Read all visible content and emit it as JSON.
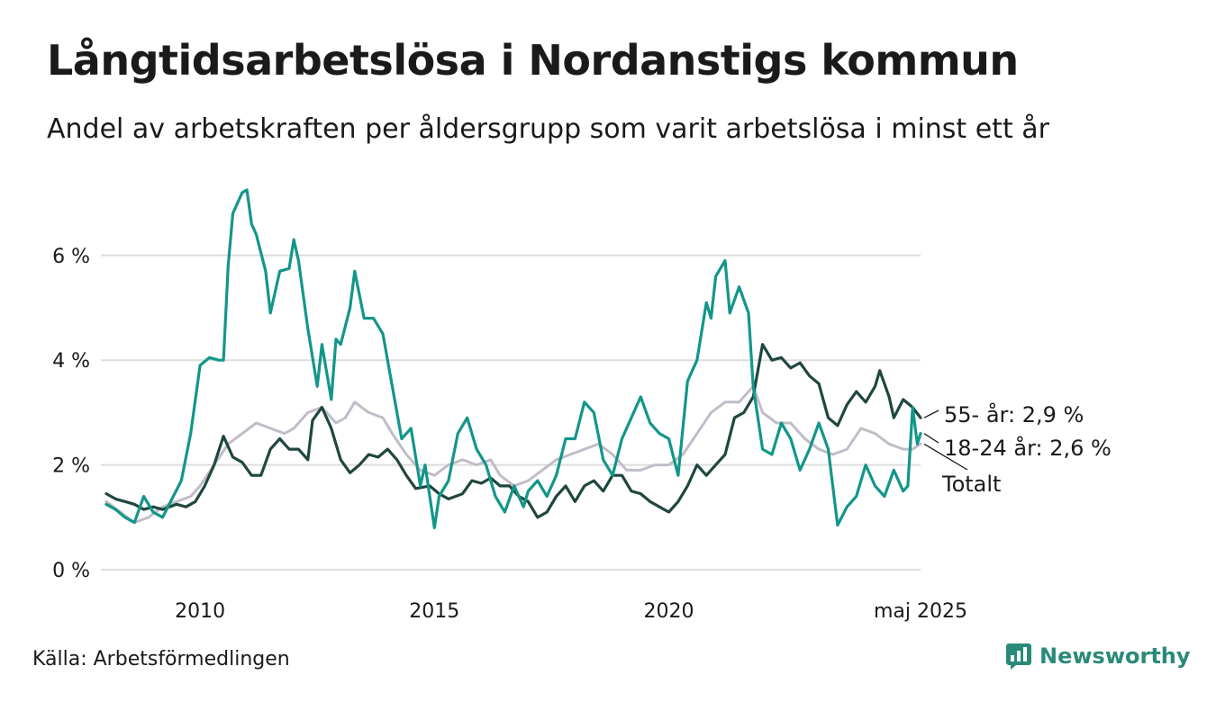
{
  "title": "Långtidsarbetslösa i Nordanstigs kommun",
  "subtitle": "Andel av arbetskraften per åldersgrupp som varit arbetslösa i minst ett år",
  "source": "Källa: Arbetsförmedlingen",
  "brand": "Newsworthy",
  "colors": {
    "young": "#13968a",
    "old": "#20473f",
    "total": "#c2bcc9",
    "grid": "#dddddd",
    "brand": "#2a8a7a"
  },
  "chart_data": {
    "type": "line",
    "yticks": [
      {
        "v": 0,
        "label": "0 %"
      },
      {
        "v": 2,
        "label": "2 %"
      },
      {
        "v": 4,
        "label": "4 %"
      },
      {
        "v": 6,
        "label": "6 %"
      }
    ],
    "xticks": [
      {
        "v": 2010,
        "label": "2010"
      },
      {
        "v": 2015,
        "label": "2015"
      },
      {
        "v": 2020,
        "label": "2020"
      },
      {
        "v": 2025.37,
        "label": "maj 2025"
      }
    ],
    "xlim": [
      2008.0,
      2025.37
    ],
    "ylim": [
      0,
      7.5
    ],
    "grid": true,
    "series": [
      {
        "key": "total",
        "name": "Totalt",
        "end_label": "Totalt",
        "points": [
          [
            2008.0,
            1.3
          ],
          [
            2008.3,
            1.1
          ],
          [
            2008.6,
            0.9
          ],
          [
            2008.9,
            1.0
          ],
          [
            2009.2,
            1.2
          ],
          [
            2009.5,
            1.3
          ],
          [
            2009.8,
            1.4
          ],
          [
            2010.0,
            1.6
          ],
          [
            2010.3,
            2.0
          ],
          [
            2010.6,
            2.4
          ],
          [
            2010.9,
            2.6
          ],
          [
            2011.2,
            2.8
          ],
          [
            2011.5,
            2.7
          ],
          [
            2011.8,
            2.6
          ],
          [
            2012.0,
            2.7
          ],
          [
            2012.3,
            3.0
          ],
          [
            2012.6,
            3.1
          ],
          [
            2012.9,
            2.8
          ],
          [
            2013.1,
            2.9
          ],
          [
            2013.3,
            3.2
          ],
          [
            2013.6,
            3.0
          ],
          [
            2013.9,
            2.9
          ],
          [
            2014.1,
            2.6
          ],
          [
            2014.4,
            2.2
          ],
          [
            2014.7,
            1.9
          ],
          [
            2015.0,
            1.8
          ],
          [
            2015.3,
            2.0
          ],
          [
            2015.6,
            2.1
          ],
          [
            2015.9,
            2.0
          ],
          [
            2016.2,
            2.1
          ],
          [
            2016.4,
            1.8
          ],
          [
            2016.7,
            1.6
          ],
          [
            2017.0,
            1.7
          ],
          [
            2017.3,
            1.9
          ],
          [
            2017.6,
            2.1
          ],
          [
            2017.9,
            2.2
          ],
          [
            2018.2,
            2.3
          ],
          [
            2018.5,
            2.4
          ],
          [
            2018.8,
            2.2
          ],
          [
            2019.1,
            1.9
          ],
          [
            2019.4,
            1.9
          ],
          [
            2019.7,
            2.0
          ],
          [
            2020.0,
            2.0
          ],
          [
            2020.3,
            2.2
          ],
          [
            2020.6,
            2.6
          ],
          [
            2020.9,
            3.0
          ],
          [
            2021.2,
            3.2
          ],
          [
            2021.5,
            3.2
          ],
          [
            2021.8,
            3.5
          ],
          [
            2022.0,
            3.0
          ],
          [
            2022.3,
            2.8
          ],
          [
            2022.6,
            2.8
          ],
          [
            2022.9,
            2.5
          ],
          [
            2023.2,
            2.3
          ],
          [
            2023.5,
            2.2
          ],
          [
            2023.8,
            2.3
          ],
          [
            2024.1,
            2.7
          ],
          [
            2024.4,
            2.6
          ],
          [
            2024.7,
            2.4
          ],
          [
            2025.0,
            2.3
          ],
          [
            2025.2,
            2.3
          ],
          [
            2025.37,
            2.4
          ]
        ]
      },
      {
        "key": "old",
        "name": "55- år",
        "end_label": "55- år: 2,9 %",
        "points": [
          [
            2008.0,
            1.45
          ],
          [
            2008.2,
            1.35
          ],
          [
            2008.4,
            1.3
          ],
          [
            2008.6,
            1.25
          ],
          [
            2008.8,
            1.15
          ],
          [
            2009.0,
            1.2
          ],
          [
            2009.2,
            1.15
          ],
          [
            2009.5,
            1.25
          ],
          [
            2009.7,
            1.2
          ],
          [
            2009.9,
            1.3
          ],
          [
            2010.1,
            1.6
          ],
          [
            2010.3,
            2.0
          ],
          [
            2010.5,
            2.55
          ],
          [
            2010.7,
            2.15
          ],
          [
            2010.9,
            2.05
          ],
          [
            2011.1,
            1.8
          ],
          [
            2011.3,
            1.8
          ],
          [
            2011.5,
            2.3
          ],
          [
            2011.7,
            2.5
          ],
          [
            2011.9,
            2.3
          ],
          [
            2012.1,
            2.3
          ],
          [
            2012.3,
            2.1
          ],
          [
            2012.4,
            2.85
          ],
          [
            2012.6,
            3.1
          ],
          [
            2012.8,
            2.7
          ],
          [
            2013.0,
            2.1
          ],
          [
            2013.2,
            1.85
          ],
          [
            2013.4,
            2.0
          ],
          [
            2013.6,
            2.2
          ],
          [
            2013.8,
            2.15
          ],
          [
            2014.0,
            2.3
          ],
          [
            2014.2,
            2.1
          ],
          [
            2014.4,
            1.8
          ],
          [
            2014.6,
            1.55
          ],
          [
            2014.9,
            1.6
          ],
          [
            2015.1,
            1.45
          ],
          [
            2015.3,
            1.35
          ],
          [
            2015.6,
            1.45
          ],
          [
            2015.8,
            1.7
          ],
          [
            2016.0,
            1.65
          ],
          [
            2016.2,
            1.75
          ],
          [
            2016.4,
            1.6
          ],
          [
            2016.6,
            1.6
          ],
          [
            2016.8,
            1.4
          ],
          [
            2017.0,
            1.3
          ],
          [
            2017.2,
            1.0
          ],
          [
            2017.4,
            1.1
          ],
          [
            2017.6,
            1.4
          ],
          [
            2017.8,
            1.6
          ],
          [
            2018.0,
            1.3
          ],
          [
            2018.2,
            1.6
          ],
          [
            2018.4,
            1.7
          ],
          [
            2018.6,
            1.5
          ],
          [
            2018.8,
            1.8
          ],
          [
            2019.0,
            1.8
          ],
          [
            2019.2,
            1.5
          ],
          [
            2019.4,
            1.45
          ],
          [
            2019.6,
            1.3
          ],
          [
            2019.8,
            1.2
          ],
          [
            2020.0,
            1.1
          ],
          [
            2020.2,
            1.3
          ],
          [
            2020.4,
            1.6
          ],
          [
            2020.6,
            2.0
          ],
          [
            2020.8,
            1.8
          ],
          [
            2021.0,
            2.0
          ],
          [
            2021.2,
            2.2
          ],
          [
            2021.4,
            2.9
          ],
          [
            2021.6,
            3.0
          ],
          [
            2021.8,
            3.3
          ],
          [
            2022.0,
            4.3
          ],
          [
            2022.2,
            4.0
          ],
          [
            2022.4,
            4.05
          ],
          [
            2022.6,
            3.85
          ],
          [
            2022.8,
            3.95
          ],
          [
            2023.0,
            3.7
          ],
          [
            2023.2,
            3.55
          ],
          [
            2023.4,
            2.9
          ],
          [
            2023.6,
            2.75
          ],
          [
            2023.8,
            3.15
          ],
          [
            2024.0,
            3.4
          ],
          [
            2024.2,
            3.2
          ],
          [
            2024.4,
            3.5
          ],
          [
            2024.5,
            3.8
          ],
          [
            2024.7,
            3.3
          ],
          [
            2024.8,
            2.9
          ],
          [
            2025.0,
            3.25
          ],
          [
            2025.2,
            3.1
          ],
          [
            2025.37,
            2.9
          ]
        ]
      },
      {
        "key": "young",
        "name": "18-24 år",
        "end_label": "18-24 år: 2,6 %",
        "points": [
          [
            2008.0,
            1.25
          ],
          [
            2008.2,
            1.15
          ],
          [
            2008.4,
            1.0
          ],
          [
            2008.6,
            0.9
          ],
          [
            2008.8,
            1.4
          ],
          [
            2009.0,
            1.1
          ],
          [
            2009.2,
            1.0
          ],
          [
            2009.4,
            1.35
          ],
          [
            2009.6,
            1.7
          ],
          [
            2009.8,
            2.6
          ],
          [
            2010.0,
            3.9
          ],
          [
            2010.2,
            4.05
          ],
          [
            2010.4,
            4.0
          ],
          [
            2010.5,
            4.0
          ],
          [
            2010.6,
            5.8
          ],
          [
            2010.7,
            6.8
          ],
          [
            2010.9,
            7.2
          ],
          [
            2011.0,
            7.25
          ],
          [
            2011.1,
            6.6
          ],
          [
            2011.2,
            6.4
          ],
          [
            2011.4,
            5.7
          ],
          [
            2011.5,
            4.9
          ],
          [
            2011.7,
            5.7
          ],
          [
            2011.9,
            5.75
          ],
          [
            2012.0,
            6.3
          ],
          [
            2012.1,
            5.9
          ],
          [
            2012.3,
            4.6
          ],
          [
            2012.5,
            3.5
          ],
          [
            2012.6,
            4.3
          ],
          [
            2012.8,
            3.25
          ],
          [
            2012.9,
            4.4
          ],
          [
            2013.0,
            4.3
          ],
          [
            2013.2,
            5.0
          ],
          [
            2013.3,
            5.7
          ],
          [
            2013.5,
            4.8
          ],
          [
            2013.7,
            4.8
          ],
          [
            2013.9,
            4.5
          ],
          [
            2014.1,
            3.5
          ],
          [
            2014.3,
            2.5
          ],
          [
            2014.5,
            2.7
          ],
          [
            2014.7,
            1.6
          ],
          [
            2014.8,
            2.0
          ],
          [
            2015.0,
            0.8
          ],
          [
            2015.1,
            1.4
          ],
          [
            2015.3,
            1.7
          ],
          [
            2015.5,
            2.6
          ],
          [
            2015.7,
            2.9
          ],
          [
            2015.9,
            2.3
          ],
          [
            2016.1,
            2.0
          ],
          [
            2016.3,
            1.4
          ],
          [
            2016.5,
            1.1
          ],
          [
            2016.7,
            1.6
          ],
          [
            2016.9,
            1.2
          ],
          [
            2017.0,
            1.5
          ],
          [
            2017.2,
            1.7
          ],
          [
            2017.4,
            1.4
          ],
          [
            2017.6,
            1.8
          ],
          [
            2017.8,
            2.5
          ],
          [
            2018.0,
            2.5
          ],
          [
            2018.2,
            3.2
          ],
          [
            2018.4,
            3.0
          ],
          [
            2018.6,
            2.1
          ],
          [
            2018.8,
            1.8
          ],
          [
            2019.0,
            2.5
          ],
          [
            2019.2,
            2.9
          ],
          [
            2019.4,
            3.3
          ],
          [
            2019.6,
            2.8
          ],
          [
            2019.8,
            2.6
          ],
          [
            2020.0,
            2.5
          ],
          [
            2020.2,
            1.8
          ],
          [
            2020.4,
            3.6
          ],
          [
            2020.6,
            4.0
          ],
          [
            2020.8,
            5.1
          ],
          [
            2020.9,
            4.8
          ],
          [
            2021.0,
            5.6
          ],
          [
            2021.2,
            5.9
          ],
          [
            2021.3,
            4.9
          ],
          [
            2021.5,
            5.4
          ],
          [
            2021.7,
            4.9
          ],
          [
            2021.8,
            3.5
          ],
          [
            2022.0,
            2.3
          ],
          [
            2022.2,
            2.2
          ],
          [
            2022.4,
            2.8
          ],
          [
            2022.6,
            2.5
          ],
          [
            2022.8,
            1.9
          ],
          [
            2023.0,
            2.3
          ],
          [
            2023.2,
            2.8
          ],
          [
            2023.4,
            2.3
          ],
          [
            2023.6,
            0.85
          ],
          [
            2023.8,
            1.2
          ],
          [
            2024.0,
            1.4
          ],
          [
            2024.2,
            2.0
          ],
          [
            2024.4,
            1.6
          ],
          [
            2024.6,
            1.4
          ],
          [
            2024.8,
            1.9
          ],
          [
            2025.0,
            1.5
          ],
          [
            2025.1,
            1.6
          ],
          [
            2025.2,
            3.1
          ],
          [
            2025.3,
            2.4
          ],
          [
            2025.37,
            2.6
          ]
        ]
      }
    ]
  }
}
